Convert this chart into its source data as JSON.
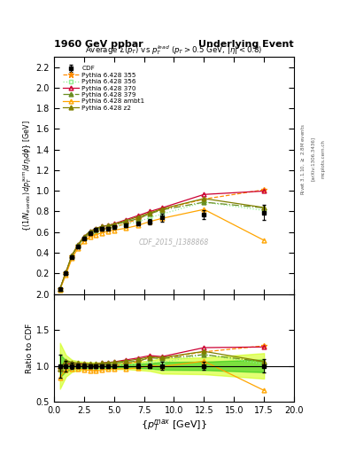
{
  "title_left": "1960 GeV ppbar",
  "title_right": "Underlying Event",
  "plot_title": "Average $\\Sigma(p_T)$ vs $p_T^{lead}$ ($p_T > 0.5$ GeV, $|\\eta| < 0.8$)",
  "xlabel": "$\\{p_T^{max}$ [GeV]$\\}$",
  "ylabel_main": "$\\{(1/N_{events})\\, dp_T^{sum}/d\\eta_t d\\phi\\}$ [GeV]",
  "ylabel_ratio": "Ratio to CDF",
  "watermark": "CDF_2015_I1388868",
  "cdf_x": [
    0.5,
    1.0,
    1.5,
    2.0,
    2.5,
    3.0,
    3.5,
    4.0,
    4.5,
    5.0,
    6.0,
    7.0,
    8.0,
    9.0,
    12.5,
    17.5
  ],
  "cdf_y": [
    0.05,
    0.2,
    0.36,
    0.46,
    0.54,
    0.59,
    0.62,
    0.63,
    0.635,
    0.645,
    0.665,
    0.685,
    0.7,
    0.74,
    0.77,
    0.79
  ],
  "cdf_yerr": [
    0.008,
    0.015,
    0.015,
    0.015,
    0.015,
    0.015,
    0.015,
    0.015,
    0.015,
    0.015,
    0.015,
    0.02,
    0.025,
    0.04,
    0.045,
    0.07
  ],
  "py355_x": [
    0.5,
    1.0,
    1.5,
    2.0,
    2.5,
    3.0,
    3.5,
    4.0,
    4.5,
    5.0,
    6.0,
    7.0,
    8.0,
    9.0,
    12.5,
    17.5
  ],
  "py355_y": [
    0.048,
    0.205,
    0.365,
    0.465,
    0.535,
    0.58,
    0.605,
    0.625,
    0.635,
    0.645,
    0.685,
    0.725,
    0.785,
    0.82,
    0.92,
    1.01
  ],
  "py355_yerr": [
    0.002,
    0.003,
    0.003,
    0.003,
    0.003,
    0.003,
    0.003,
    0.003,
    0.003,
    0.003,
    0.003,
    0.004,
    0.004,
    0.005,
    0.007,
    0.015
  ],
  "py355_color": "#ff8c00",
  "py355_label": "Pythia 6.428 355",
  "py356_x": [
    0.5,
    1.0,
    1.5,
    2.0,
    2.5,
    3.0,
    3.5,
    4.0,
    4.5,
    5.0,
    6.0,
    7.0,
    8.0,
    9.0,
    12.5,
    17.5
  ],
  "py356_y": [
    0.048,
    0.205,
    0.365,
    0.465,
    0.54,
    0.585,
    0.61,
    0.63,
    0.64,
    0.65,
    0.675,
    0.7,
    0.74,
    0.775,
    0.89,
    0.81
  ],
  "py356_color": "#90ee90",
  "py356_label": "Pythia 6.428 356",
  "py370_x": [
    0.5,
    1.0,
    1.5,
    2.0,
    2.5,
    3.0,
    3.5,
    4.0,
    4.5,
    5.0,
    6.0,
    7.0,
    8.0,
    9.0,
    12.5,
    17.5
  ],
  "py370_y": [
    0.048,
    0.208,
    0.37,
    0.475,
    0.555,
    0.605,
    0.635,
    0.655,
    0.665,
    0.68,
    0.72,
    0.76,
    0.8,
    0.835,
    0.965,
    0.998
  ],
  "py370_color": "#cc0033",
  "py370_label": "Pythia 6.428 370",
  "py379_x": [
    0.5,
    1.0,
    1.5,
    2.0,
    2.5,
    3.0,
    3.5,
    4.0,
    4.5,
    5.0,
    6.0,
    7.0,
    8.0,
    9.0,
    12.5,
    17.5
  ],
  "py379_y": [
    0.048,
    0.207,
    0.368,
    0.468,
    0.545,
    0.595,
    0.623,
    0.645,
    0.655,
    0.67,
    0.7,
    0.73,
    0.778,
    0.815,
    0.89,
    0.835
  ],
  "py379_color": "#6b8e23",
  "py379_label": "Pythia 6.428 379",
  "pyambt_x": [
    0.5,
    1.0,
    1.5,
    2.0,
    2.5,
    3.0,
    3.5,
    4.0,
    4.5,
    5.0,
    6.0,
    7.0,
    8.0,
    9.0,
    12.5,
    17.5
  ],
  "pyambt_y": [
    0.042,
    0.188,
    0.345,
    0.443,
    0.51,
    0.553,
    0.575,
    0.593,
    0.608,
    0.618,
    0.638,
    0.665,
    0.703,
    0.733,
    0.82,
    0.52
  ],
  "pyambt_color": "#ffa500",
  "pyambt_label": "Pythia 6.428 ambt1",
  "pyz2_x": [
    0.5,
    1.0,
    1.5,
    2.0,
    2.5,
    3.0,
    3.5,
    4.0,
    4.5,
    5.0,
    6.0,
    7.0,
    8.0,
    9.0,
    12.5,
    17.5
  ],
  "pyz2_y": [
    0.048,
    0.215,
    0.378,
    0.478,
    0.557,
    0.607,
    0.636,
    0.655,
    0.665,
    0.678,
    0.71,
    0.748,
    0.786,
    0.825,
    0.925,
    0.838
  ],
  "pyz2_color": "#808000",
  "pyz2_label": "Pythia 6.428 z2",
  "xlim": [
    0,
    20
  ],
  "ylim_main": [
    0.0,
    2.3
  ],
  "ylim_ratio": [
    0.5,
    2.0
  ],
  "yticks_main": [
    0.2,
    0.4,
    0.6,
    0.8,
    1.0,
    1.2,
    1.4,
    1.6,
    1.8,
    2.0,
    2.2
  ],
  "yticks_ratio": [
    0.5,
    1.0,
    1.5,
    2.0
  ],
  "xticks": [
    0,
    2,
    4,
    6,
    8,
    10,
    12,
    14,
    16,
    18,
    20
  ]
}
